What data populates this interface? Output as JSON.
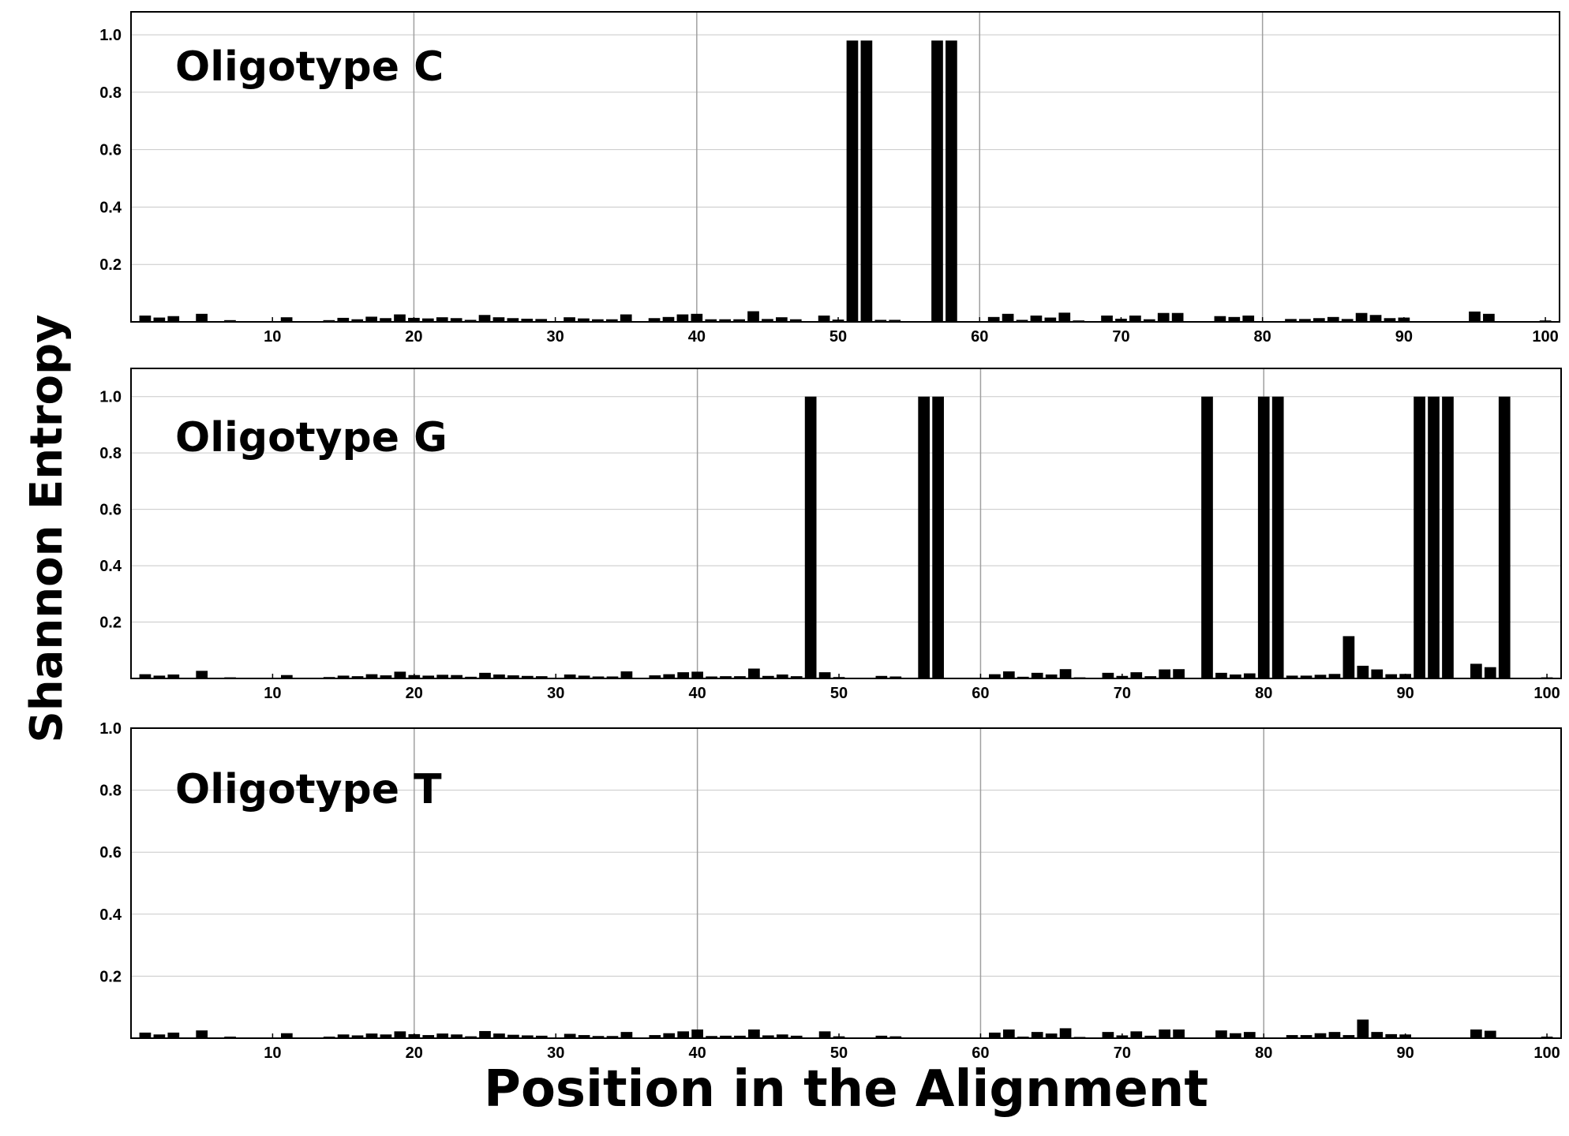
{
  "figure": {
    "ylabel": "Shannon Entropy",
    "xlabel": "Position in the Alignment"
  },
  "chart_data": [
    {
      "type": "bar",
      "title": "Oligotype C",
      "xlabel": "Position in the Alignment",
      "ylabel": "Shannon Entropy",
      "xlim": [
        0,
        101
      ],
      "ylim": [
        0,
        1.08
      ],
      "xticks": [
        10,
        20,
        30,
        40,
        50,
        60,
        70,
        80,
        90,
        100
      ],
      "yticks": [
        0.2,
        0.4,
        0.6,
        0.8,
        1.0
      ],
      "ytick_labels": [
        "0.2",
        "0.4",
        "0.6",
        "0.8",
        "1.0"
      ],
      "grid": true,
      "bar_color": "#000000",
      "x": [
        1,
        2,
        3,
        5,
        7,
        11,
        14,
        15,
        16,
        17,
        18,
        19,
        20,
        21,
        22,
        23,
        24,
        25,
        26,
        27,
        28,
        29,
        31,
        32,
        33,
        34,
        35,
        37,
        38,
        39,
        40,
        41,
        42,
        43,
        44,
        45,
        46,
        47,
        49,
        50,
        51,
        52,
        53,
        54,
        57,
        58,
        61,
        62,
        63,
        64,
        65,
        66,
        67,
        69,
        70,
        71,
        72,
        73,
        74,
        77,
        78,
        79,
        82,
        83,
        84,
        85,
        86,
        87,
        88,
        89,
        90,
        95,
        96,
        100
      ],
      "values": [
        0.022,
        0.015,
        0.02,
        0.028,
        0.006,
        0.016,
        0.006,
        0.014,
        0.009,
        0.018,
        0.013,
        0.026,
        0.014,
        0.012,
        0.016,
        0.013,
        0.007,
        0.024,
        0.016,
        0.013,
        0.011,
        0.01,
        0.016,
        0.012,
        0.009,
        0.009,
        0.026,
        0.013,
        0.017,
        0.026,
        0.028,
        0.009,
        0.009,
        0.009,
        0.037,
        0.01,
        0.016,
        0.009,
        0.022,
        0.008,
        0.98,
        0.98,
        0.007,
        0.007,
        0.98,
        0.98,
        0.017,
        0.028,
        0.007,
        0.022,
        0.015,
        0.032,
        0.005,
        0.022,
        0.011,
        0.022,
        0.009,
        0.031,
        0.031,
        0.02,
        0.017,
        0.022,
        0.01,
        0.01,
        0.013,
        0.017,
        0.01,
        0.031,
        0.024,
        0.013,
        0.015,
        0.036,
        0.028,
        0.005
      ]
    },
    {
      "type": "bar",
      "title": "Oligotype G",
      "xlabel": "Position in the Alignment",
      "ylabel": "Shannon Entropy",
      "xlim": [
        0,
        101
      ],
      "ylim": [
        0,
        1.1
      ],
      "xticks": [
        10,
        20,
        30,
        40,
        50,
        60,
        70,
        80,
        90,
        100
      ],
      "yticks": [
        0.2,
        0.4,
        0.6,
        0.8,
        1.0
      ],
      "ytick_labels": [
        "0.2",
        "0.4",
        "0.6",
        "0.8",
        "1.0"
      ],
      "grid": true,
      "bar_color": "#000000",
      "x": [
        1,
        2,
        3,
        5,
        7,
        11,
        14,
        15,
        16,
        17,
        18,
        19,
        20,
        21,
        22,
        23,
        24,
        25,
        26,
        27,
        28,
        29,
        31,
        32,
        33,
        34,
        35,
        37,
        38,
        39,
        40,
        41,
        42,
        43,
        44,
        45,
        46,
        47,
        48,
        49,
        50,
        53,
        54,
        56,
        57,
        61,
        62,
        63,
        64,
        65,
        66,
        67,
        69,
        70,
        71,
        72,
        73,
        74,
        76,
        77,
        78,
        79,
        80,
        81,
        82,
        83,
        84,
        85,
        86,
        87,
        88,
        89,
        90,
        91,
        92,
        93,
        95,
        96,
        97,
        100
      ],
      "values": [
        0.015,
        0.01,
        0.014,
        0.027,
        0.004,
        0.012,
        0.005,
        0.01,
        0.008,
        0.015,
        0.011,
        0.024,
        0.012,
        0.01,
        0.013,
        0.012,
        0.006,
        0.02,
        0.014,
        0.011,
        0.009,
        0.008,
        0.014,
        0.01,
        0.007,
        0.007,
        0.025,
        0.011,
        0.015,
        0.022,
        0.024,
        0.007,
        0.008,
        0.008,
        0.035,
        0.009,
        0.014,
        0.008,
        1.0,
        0.022,
        0.005,
        0.009,
        0.007,
        1.0,
        1.0,
        0.015,
        0.025,
        0.006,
        0.02,
        0.014,
        0.033,
        0.004,
        0.02,
        0.009,
        0.022,
        0.008,
        0.032,
        0.033,
        1.0,
        0.02,
        0.014,
        0.018,
        1.0,
        1.0,
        0.01,
        0.01,
        0.013,
        0.016,
        0.15,
        0.045,
        0.032,
        0.015,
        0.016,
        1.0,
        1.0,
        1.0,
        0.052,
        0.04,
        1.0,
        0.004
      ]
    },
    {
      "type": "bar",
      "title": "Oligotype T",
      "xlabel": "Position in the Alignment",
      "ylabel": "Shannon Entropy",
      "xlim": [
        0,
        101
      ],
      "ylim": [
        0,
        1.0
      ],
      "xticks": [
        10,
        20,
        30,
        40,
        50,
        60,
        70,
        80,
        90,
        100
      ],
      "yticks": [
        0.2,
        0.4,
        0.6,
        0.8,
        1.0
      ],
      "ytick_labels": [
        "0.2",
        "0.4",
        "0.6",
        "0.8",
        "1.0"
      ],
      "grid": true,
      "bar_color": "#000000",
      "x": [
        1,
        2,
        3,
        5,
        7,
        11,
        14,
        15,
        16,
        17,
        18,
        19,
        20,
        21,
        22,
        23,
        24,
        25,
        26,
        27,
        28,
        29,
        31,
        32,
        33,
        34,
        35,
        37,
        38,
        39,
        40,
        41,
        42,
        43,
        44,
        45,
        46,
        47,
        49,
        50,
        53,
        54,
        61,
        62,
        63,
        64,
        65,
        66,
        67,
        69,
        70,
        71,
        72,
        73,
        74,
        77,
        78,
        79,
        82,
        83,
        84,
        85,
        86,
        87,
        88,
        89,
        90,
        95,
        96,
        100
      ],
      "values": [
        0.018,
        0.012,
        0.018,
        0.025,
        0.005,
        0.016,
        0.005,
        0.012,
        0.009,
        0.015,
        0.012,
        0.022,
        0.013,
        0.01,
        0.015,
        0.012,
        0.006,
        0.023,
        0.015,
        0.011,
        0.009,
        0.008,
        0.014,
        0.01,
        0.007,
        0.007,
        0.02,
        0.01,
        0.016,
        0.022,
        0.028,
        0.007,
        0.008,
        0.008,
        0.028,
        0.009,
        0.012,
        0.008,
        0.022,
        0.006,
        0.008,
        0.006,
        0.018,
        0.028,
        0.005,
        0.02,
        0.015,
        0.032,
        0.004,
        0.02,
        0.009,
        0.022,
        0.008,
        0.028,
        0.028,
        0.025,
        0.016,
        0.02,
        0.01,
        0.01,
        0.016,
        0.02,
        0.01,
        0.06,
        0.02,
        0.013,
        0.012,
        0.028,
        0.024,
        0.005
      ]
    }
  ]
}
